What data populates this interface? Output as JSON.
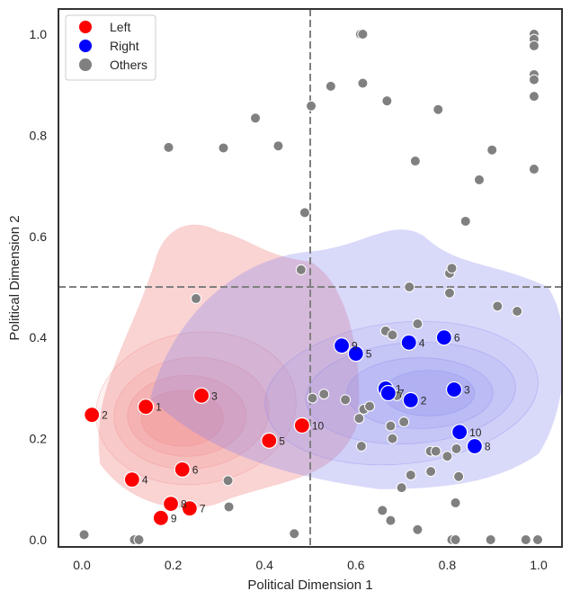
{
  "chart_data": {
    "type": "scatter",
    "title": "",
    "xlabel": "Political Dimension 1",
    "ylabel": "Political Dimension 2",
    "xlim": [
      -0.05,
      1.05
    ],
    "ylim": [
      -0.015,
      1.05
    ],
    "xticks": [
      "0.0",
      "0.2",
      "0.4",
      "0.6",
      "0.8",
      "1.0"
    ],
    "xtick_values": [
      0.0,
      0.2,
      0.4,
      0.6,
      0.8,
      1.0
    ],
    "yticks": [
      "0.0",
      "0.2",
      "0.4",
      "0.6",
      "0.8",
      "1.0"
    ],
    "ytick_values": [
      0.0,
      0.2,
      0.4,
      0.6,
      0.8,
      1.0
    ],
    "grid": false,
    "reference_lines": {
      "x": 0.5,
      "y": 0.5,
      "style": "dashed",
      "color": "#808080"
    },
    "legend": {
      "placement": "top-left",
      "entries": [
        {
          "label": "Left",
          "color": "#ff0000"
        },
        {
          "label": "Right",
          "color": "#0000ff"
        },
        {
          "label": "Others",
          "color": "#808080"
        }
      ]
    },
    "kde": [
      {
        "name": "Left density",
        "color": "#f08080"
      },
      {
        "name": "Right density",
        "color": "#8080f0"
      }
    ],
    "series": [
      {
        "name": "Left",
        "color": "#ff0000",
        "points": [
          {
            "label": "1",
            "x": 0.14,
            "y": 0.263
          },
          {
            "label": "2",
            "x": 0.022,
            "y": 0.247
          },
          {
            "label": "3",
            "x": 0.262,
            "y": 0.285
          },
          {
            "label": "4",
            "x": 0.11,
            "y": 0.119
          },
          {
            "label": "5",
            "x": 0.41,
            "y": 0.196
          },
          {
            "label": "6",
            "x": 0.22,
            "y": 0.139
          },
          {
            "label": "7",
            "x": 0.236,
            "y": 0.062
          },
          {
            "label": "8",
            "x": 0.195,
            "y": 0.071
          },
          {
            "label": "9",
            "x": 0.173,
            "y": 0.043
          },
          {
            "label": "10",
            "x": 0.482,
            "y": 0.226
          }
        ]
      },
      {
        "name": "Right",
        "color": "#0000ff",
        "points": [
          {
            "label": "1",
            "x": 0.665,
            "y": 0.299
          },
          {
            "label": "2",
            "x": 0.72,
            "y": 0.276
          },
          {
            "label": "3",
            "x": 0.815,
            "y": 0.297
          },
          {
            "label": "4",
            "x": 0.716,
            "y": 0.39
          },
          {
            "label": "5",
            "x": 0.6,
            "y": 0.368
          },
          {
            "label": "6",
            "x": 0.793,
            "y": 0.4
          },
          {
            "label": "7",
            "x": 0.671,
            "y": 0.29
          },
          {
            "label": "8",
            "x": 0.86,
            "y": 0.185
          },
          {
            "label": "9",
            "x": 0.569,
            "y": 0.384
          },
          {
            "label": "10",
            "x": 0.827,
            "y": 0.213
          }
        ]
      },
      {
        "name": "Others",
        "color": "#808080",
        "points": [
          {
            "x": 0.005,
            "y": 0.01
          },
          {
            "x": 0.115,
            "y": 0.0
          },
          {
            "x": 0.125,
            "y": 0.0
          },
          {
            "x": 0.465,
            "y": 0.012
          },
          {
            "x": 0.24,
            "y": 0.058
          },
          {
            "x": 0.322,
            "y": 0.065
          },
          {
            "x": 0.32,
            "y": 0.117
          },
          {
            "x": 0.25,
            "y": 0.477
          },
          {
            "x": 0.19,
            "y": 0.776
          },
          {
            "x": 0.31,
            "y": 0.775
          },
          {
            "x": 0.38,
            "y": 0.834
          },
          {
            "x": 0.43,
            "y": 0.779
          },
          {
            "x": 0.488,
            "y": 0.647
          },
          {
            "x": 0.502,
            "y": 0.858
          },
          {
            "x": 0.545,
            "y": 0.897
          },
          {
            "x": 0.61,
            "y": 1.0
          },
          {
            "x": 0.615,
            "y": 1.0
          },
          {
            "x": 0.615,
            "y": 0.903
          },
          {
            "x": 0.668,
            "y": 0.868
          },
          {
            "x": 0.73,
            "y": 0.749
          },
          {
            "x": 0.78,
            "y": 0.851
          },
          {
            "x": 0.87,
            "y": 0.712
          },
          {
            "x": 0.898,
            "y": 0.771
          },
          {
            "x": 0.84,
            "y": 0.63
          },
          {
            "x": 0.99,
            "y": 1.0
          },
          {
            "x": 0.99,
            "y": 0.99
          },
          {
            "x": 0.99,
            "y": 0.977
          },
          {
            "x": 0.99,
            "y": 0.92
          },
          {
            "x": 0.99,
            "y": 0.91
          },
          {
            "x": 0.99,
            "y": 0.877
          },
          {
            "x": 0.99,
            "y": 0.733
          },
          {
            "x": 0.48,
            "y": 0.534
          },
          {
            "x": 0.717,
            "y": 0.5
          },
          {
            "x": 0.805,
            "y": 0.527
          },
          {
            "x": 0.81,
            "y": 0.537
          },
          {
            "x": 0.805,
            "y": 0.488
          },
          {
            "x": 0.91,
            "y": 0.462
          },
          {
            "x": 0.953,
            "y": 0.452
          },
          {
            "x": 0.735,
            "y": 0.427
          },
          {
            "x": 0.665,
            "y": 0.413
          },
          {
            "x": 0.68,
            "y": 0.405
          },
          {
            "x": 0.505,
            "y": 0.28
          },
          {
            "x": 0.53,
            "y": 0.288
          },
          {
            "x": 0.577,
            "y": 0.277
          },
          {
            "x": 0.607,
            "y": 0.24
          },
          {
            "x": 0.617,
            "y": 0.258
          },
          {
            "x": 0.63,
            "y": 0.264
          },
          {
            "x": 0.69,
            "y": 0.285
          },
          {
            "x": 0.705,
            "y": 0.233
          },
          {
            "x": 0.676,
            "y": 0.225
          },
          {
            "x": 0.717,
            "y": 0.27
          },
          {
            "x": 0.612,
            "y": 0.185
          },
          {
            "x": 0.68,
            "y": 0.2
          },
          {
            "x": 0.763,
            "y": 0.175
          },
          {
            "x": 0.775,
            "y": 0.175
          },
          {
            "x": 0.8,
            "y": 0.165
          },
          {
            "x": 0.82,
            "y": 0.18
          },
          {
            "x": 0.72,
            "y": 0.128
          },
          {
            "x": 0.764,
            "y": 0.135
          },
          {
            "x": 0.825,
            "y": 0.125
          },
          {
            "x": 0.7,
            "y": 0.103
          },
          {
            "x": 0.818,
            "y": 0.073
          },
          {
            "x": 0.658,
            "y": 0.058
          },
          {
            "x": 0.676,
            "y": 0.038
          },
          {
            "x": 0.735,
            "y": 0.02
          },
          {
            "x": 0.81,
            "y": 0.0
          },
          {
            "x": 0.818,
            "y": 0.0
          },
          {
            "x": 0.895,
            "y": 0.0
          },
          {
            "x": 0.972,
            "y": 0.0
          },
          {
            "x": 0.998,
            "y": 0.0
          }
        ]
      }
    ]
  }
}
